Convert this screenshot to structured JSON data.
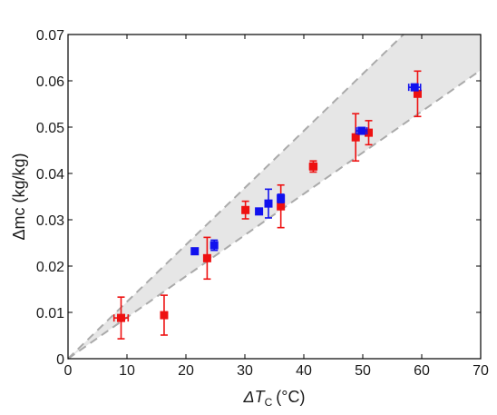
{
  "chart_data": {
    "type": "scatter",
    "title": "",
    "xlabel": {
      "symbol": "ΔT",
      "subscript": "C",
      "unit": "(°C)"
    },
    "ylabel": {
      "symbol": "Δmc",
      "unit": "(kg/kg)"
    },
    "xlim": [
      0,
      70
    ],
    "ylim": [
      0,
      0.07
    ],
    "x_ticks": [
      0,
      10,
      20,
      30,
      40,
      50,
      60,
      70
    ],
    "x_tick_labels": [
      "0",
      "10",
      "20",
      "30",
      "40",
      "50",
      "60",
      "70"
    ],
    "y_ticks": [
      0,
      0.01,
      0.02,
      0.03,
      0.04,
      0.05,
      0.06,
      0.07
    ],
    "y_tick_labels": [
      "0",
      "0.01",
      "0.02",
      "0.03",
      "0.04",
      "0.05",
      "0.06",
      "0.07"
    ],
    "grid": false,
    "band": {
      "color": "#e6e6e6",
      "edge_color": "#aaaaaa",
      "upper_slope": 0.00123,
      "lower_slope": 0.00089
    },
    "series": [
      {
        "color": "#ee1111",
        "points": [
          {
            "x": 9.0,
            "y": 0.0088,
            "yerr": 0.0045,
            "xerr": 1.2
          },
          {
            "x": 16.3,
            "y": 0.0094,
            "yerr": 0.0043,
            "xerr": 0
          },
          {
            "x": 23.6,
            "y": 0.0217,
            "yerr": 0.0045,
            "xerr": 0
          },
          {
            "x": 30.1,
            "y": 0.0321,
            "yerr": 0.0019,
            "xerr": 0
          },
          {
            "x": 36.1,
            "y": 0.0329,
            "yerr": 0.0046,
            "xerr": 0
          },
          {
            "x": 41.6,
            "y": 0.0415,
            "yerr": 0.0012,
            "xerr": 0.6
          },
          {
            "x": 48.8,
            "y": 0.0478,
            "yerr": 0.0051,
            "xerr": 0
          },
          {
            "x": 51.0,
            "y": 0.0488,
            "yerr": 0.0026,
            "xerr": 0
          },
          {
            "x": 59.3,
            "y": 0.0572,
            "yerr": 0.0049,
            "xerr": 0
          }
        ]
      },
      {
        "color": "#1111ee",
        "points": [
          {
            "x": 21.5,
            "y": 0.0232,
            "yerr": 0,
            "xerr": 0
          },
          {
            "x": 24.8,
            "y": 0.0245,
            "yerr": 0.0011,
            "xerr": 0
          },
          {
            "x": 32.4,
            "y": 0.0318,
            "yerr": 0,
            "xerr": 0
          },
          {
            "x": 34.0,
            "y": 0.0335,
            "yerr": 0.0031,
            "xerr": 0
          },
          {
            "x": 36.1,
            "y": 0.0346,
            "yerr": 0.0009,
            "xerr": 0
          },
          {
            "x": 49.8,
            "y": 0.0492,
            "yerr": 0.0007,
            "xerr": 0.9
          },
          {
            "x": 58.8,
            "y": 0.0586,
            "yerr": 0,
            "xerr": 1.0
          }
        ]
      }
    ]
  }
}
